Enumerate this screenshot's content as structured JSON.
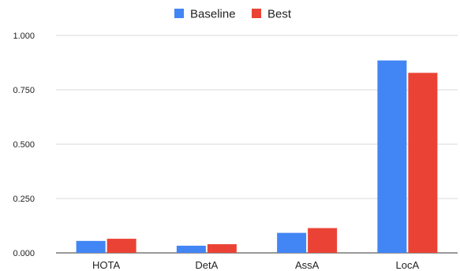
{
  "chart_data": {
    "type": "bar",
    "categories": [
      "HOTA",
      "DetA",
      "AssA",
      "LocA"
    ],
    "series": [
      {
        "name": "Baseline",
        "color": "#4285f4",
        "values": [
          0.055,
          0.033,
          0.092,
          0.885
        ]
      },
      {
        "name": "Best",
        "color": "#ea4335",
        "values": [
          0.065,
          0.04,
          0.114,
          0.828
        ]
      }
    ],
    "yticks": [
      "0.000",
      "0.250",
      "0.500",
      "0.750",
      "1.000"
    ],
    "ylim": [
      0,
      1.0
    ],
    "grid": true,
    "legend_position": "top-center"
  }
}
